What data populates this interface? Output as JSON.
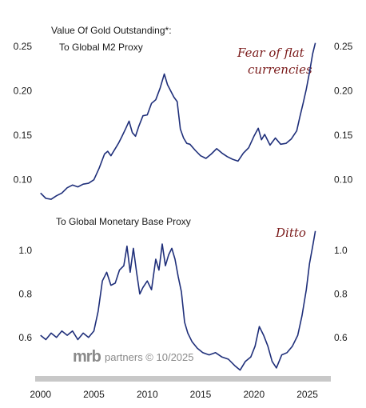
{
  "chart_data": [
    {
      "type": "line",
      "title": "Value Of Gold Outstanding*:",
      "subtitle": "To Global M2 Proxy",
      "annotation": [
        "Fear of flat",
        "currencies"
      ],
      "ylim": [
        0.07,
        0.26
      ],
      "yticks": [
        "0.10",
        "0.15",
        "0.20",
        "0.25"
      ],
      "ytick_values": [
        0.1,
        0.15,
        0.2,
        0.25
      ],
      "color": "#1f2f7a",
      "series": [
        {
          "x": [
            2000,
            2000.5,
            2001,
            2001.5,
            2002,
            2002.5,
            2003,
            2003.5,
            2004,
            2004.5,
            2005,
            2005.5,
            2006,
            2006.3,
            2006.6,
            2007,
            2007.3,
            2007.6,
            2008,
            2008.3,
            2008.6,
            2008.9,
            2009.2,
            2009.6,
            2010,
            2010.4,
            2010.8,
            2011.2,
            2011.6,
            2011.9,
            2012.2,
            2012.5,
            2012.8,
            2013.1,
            2013.4,
            2013.7,
            2014,
            2014.5,
            2015,
            2015.5,
            2016,
            2016.5,
            2017,
            2017.5,
            2018,
            2018.5,
            2019,
            2019.5,
            2020,
            2020.4,
            2020.7,
            2021,
            2021.5,
            2022,
            2022.5,
            2023,
            2023.5,
            2024,
            2024.3,
            2024.6,
            2024.9,
            2025.2,
            2025.5,
            2025.75
          ],
          "y": [
            0.085,
            0.079,
            0.078,
            0.082,
            0.085,
            0.091,
            0.094,
            0.092,
            0.095,
            0.096,
            0.1,
            0.113,
            0.129,
            0.132,
            0.127,
            0.135,
            0.141,
            0.148,
            0.158,
            0.166,
            0.153,
            0.149,
            0.16,
            0.172,
            0.173,
            0.186,
            0.19,
            0.203,
            0.219,
            0.207,
            0.2,
            0.193,
            0.188,
            0.157,
            0.147,
            0.141,
            0.14,
            0.133,
            0.127,
            0.124,
            0.129,
            0.135,
            0.13,
            0.126,
            0.123,
            0.121,
            0.13,
            0.136,
            0.149,
            0.158,
            0.145,
            0.151,
            0.139,
            0.147,
            0.14,
            0.141,
            0.146,
            0.155,
            0.171,
            0.186,
            0.202,
            0.221,
            0.242,
            0.254
          ]
        }
      ]
    },
    {
      "type": "line",
      "subtitle": "To Global Monetary Base Proxy",
      "annotation": [
        "Ditto"
      ],
      "ylim": [
        0.43,
        1.1
      ],
      "yticks": [
        "0.6",
        "0.8",
        "1.0"
      ],
      "ytick_values": [
        0.6,
        0.8,
        1.0
      ],
      "xticks": [
        "2000",
        "2005",
        "2010",
        "2015",
        "2020",
        "2025"
      ],
      "xtick_values": [
        2000,
        2005,
        2010,
        2015,
        2020,
        2025
      ],
      "xlim": [
        1999.8,
        2026.6
      ],
      "color": "#1f2f7a",
      "series": [
        {
          "x": [
            2000,
            2000.5,
            2001,
            2001.5,
            2002,
            2002.5,
            2003,
            2003.5,
            2004,
            2004.5,
            2005,
            2005.4,
            2005.8,
            2006.2,
            2006.6,
            2007,
            2007.4,
            2007.8,
            2008.1,
            2008.4,
            2008.7,
            2009,
            2009.3,
            2009.6,
            2010,
            2010.4,
            2010.8,
            2011.1,
            2011.4,
            2011.7,
            2012,
            2012.3,
            2012.6,
            2012.9,
            2013.2,
            2013.5,
            2013.8,
            2014.2,
            2014.7,
            2015.2,
            2015.8,
            2016.4,
            2017,
            2017.6,
            2018.2,
            2018.7,
            2019.2,
            2019.7,
            2020.1,
            2020.5,
            2020.9,
            2021.3,
            2021.7,
            2022.1,
            2022.6,
            2023.1,
            2023.6,
            2024.1,
            2024.5,
            2024.9,
            2025.2,
            2025.5,
            2025.75
          ],
          "y": [
            0.61,
            0.59,
            0.62,
            0.6,
            0.63,
            0.61,
            0.63,
            0.59,
            0.62,
            0.6,
            0.63,
            0.72,
            0.86,
            0.9,
            0.84,
            0.85,
            0.91,
            0.93,
            1.02,
            0.9,
            1.01,
            0.9,
            0.8,
            0.83,
            0.86,
            0.82,
            0.96,
            0.91,
            1.03,
            0.93,
            0.98,
            1.01,
            0.96,
            0.88,
            0.81,
            0.67,
            0.62,
            0.58,
            0.55,
            0.53,
            0.52,
            0.53,
            0.51,
            0.5,
            0.47,
            0.45,
            0.49,
            0.51,
            0.56,
            0.65,
            0.61,
            0.56,
            0.49,
            0.46,
            0.52,
            0.53,
            0.56,
            0.61,
            0.7,
            0.82,
            0.94,
            1.02,
            1.09
          ]
        }
      ]
    }
  ],
  "watermark": {
    "logo": "mrb",
    "text": "partners © 10/2025"
  },
  "axis_color": "#c8c8c8"
}
